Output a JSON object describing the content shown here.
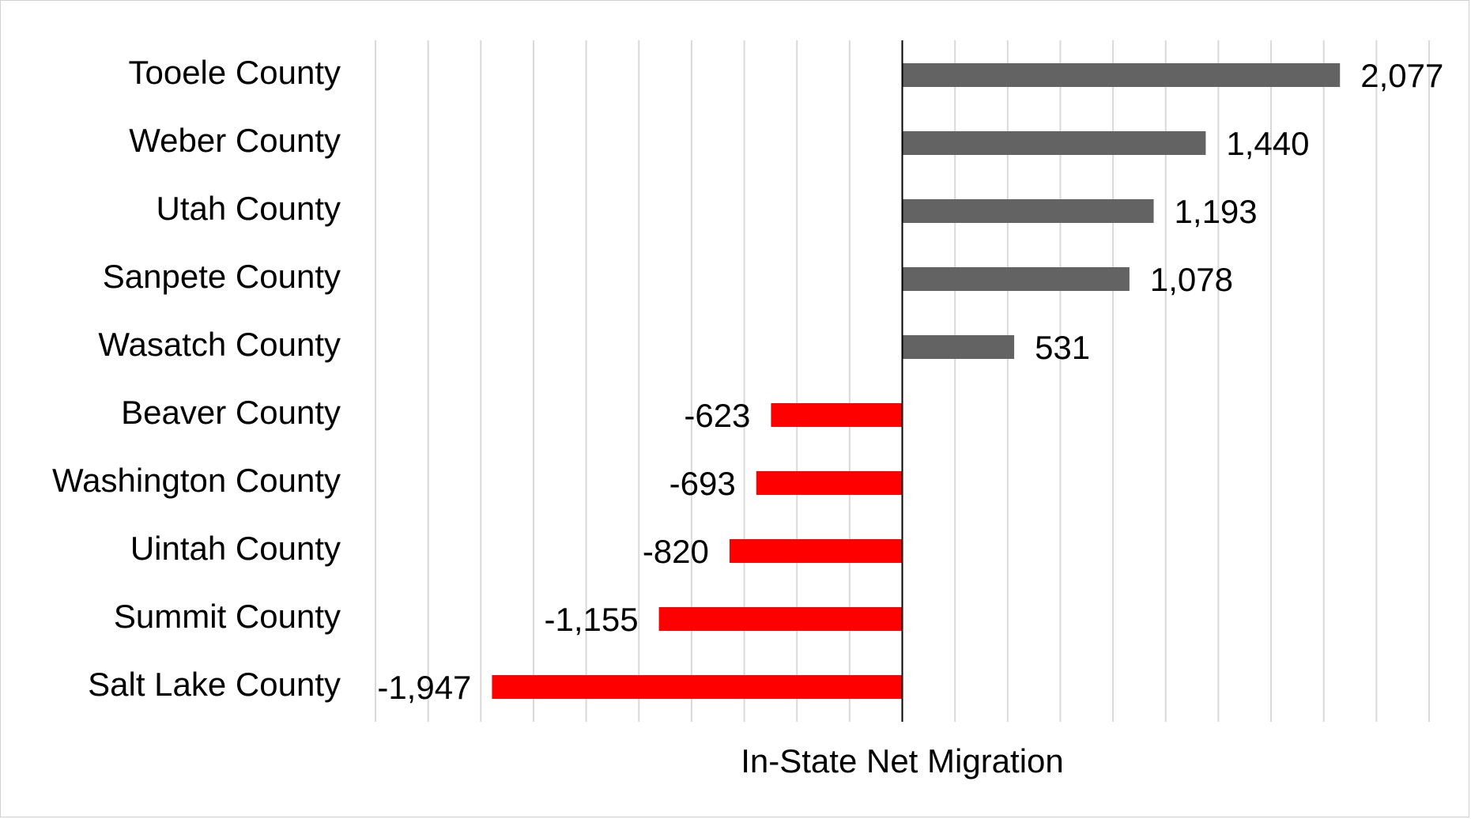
{
  "chart_data": {
    "type": "bar",
    "orientation": "horizontal",
    "categories": [
      "Tooele County",
      "Weber County",
      "Utah County",
      "Sanpete County",
      "Wasatch County",
      "Beaver County",
      "Washington County",
      "Uintah County",
      "Summit County",
      "Salt Lake County"
    ],
    "values": [
      2077,
      1440,
      1193,
      1078,
      531,
      -623,
      -693,
      -820,
      -1155,
      -1947
    ],
    "data_labels": [
      "2,077",
      "1,440",
      "1,193",
      "1,078",
      "531",
      "-623",
      "-693",
      "-820",
      "-1,155",
      "-1,947"
    ],
    "xlabel": "In-State Net Migration",
    "ylabel": "",
    "xlim": [
      -2500,
      2500
    ],
    "grid": "vertical",
    "colors": {
      "positive": "#636363",
      "negative": "#ff0000",
      "grid": "#d9d9d9",
      "axis": "#000000"
    }
  }
}
